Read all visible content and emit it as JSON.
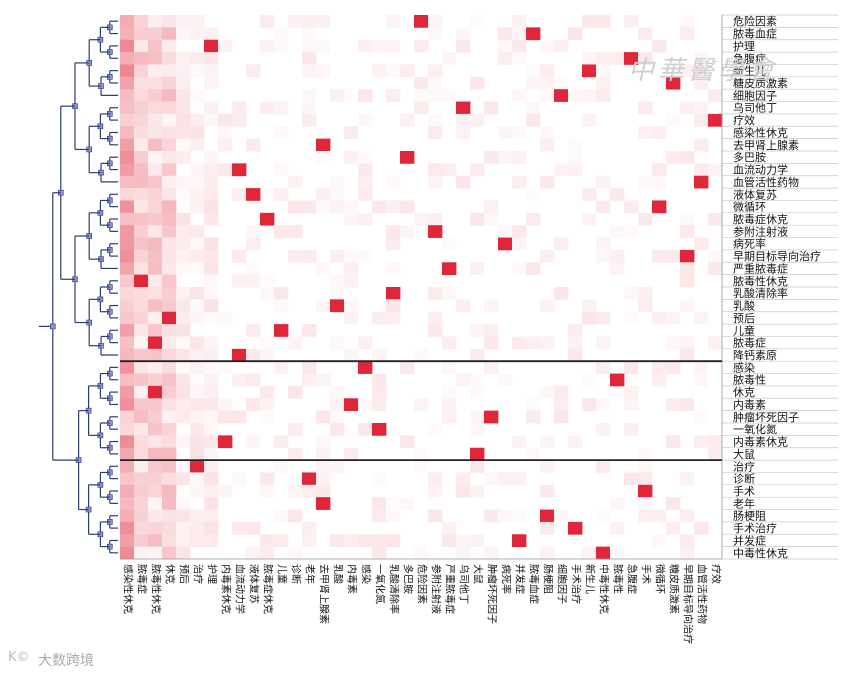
{
  "chart_data": {
    "type": "heatmap",
    "title": "",
    "rows": [
      "危险因素",
      "脓毒血症",
      "护理",
      "急腹症",
      "新生儿",
      "糖皮质激素",
      "细胞因子",
      "乌司他丁",
      "疗效",
      "感染性休克",
      "去甲肾上腺素",
      "多巴胺",
      "血流动力学",
      "血管活性药物",
      "液体复苏",
      "微循环",
      "脓毒症休克",
      "参附注射液",
      "病死率",
      "早期目标导向治疗",
      "严重脓毒症",
      "脓毒性休克",
      "乳酸清除率",
      "乳酸",
      "预后",
      "儿童",
      "脓毒症",
      "降钙素原",
      "感染",
      "脓毒性",
      "休克",
      "内毒素",
      "肿瘤坏死因子",
      "一氧化氮",
      "内毒素休克",
      "大鼠",
      "治疗",
      "诊断",
      "手术",
      "老年",
      "肠梗阻",
      "手术治疗",
      "并发症",
      "中毒性休克"
    ],
    "columns": [
      "感染性休克",
      "脓毒症",
      "脓毒性休克",
      "休克",
      "预后",
      "治疗",
      "护理",
      "内毒素休克",
      "血流动力学",
      "液体复苏",
      "脓毒症休克",
      "儿童",
      "诊断",
      "老年",
      "去甲肾上腺素",
      "乳酸",
      "内毒素",
      "感染",
      "一氧化氮",
      "乳酸清除率",
      "多巴胺",
      "危险因素",
      "参附注射液",
      "严重脓毒症",
      "乌司他丁",
      "大鼠",
      "肿瘤坏死因子",
      "病死率",
      "并发症",
      "脓毒血症",
      "肠梗阻",
      "细胞因子",
      "手术治疗",
      "新生儿",
      "中毒性休克",
      "脓毒性",
      "急腹症",
      "手术",
      "微循环",
      "糖皮质激素",
      "早期目标导向治疗",
      "血管活性药物",
      "疗效"
    ],
    "clusters": [
      28,
      8,
      8
    ],
    "hot_cells": [
      [
        0,
        21
      ],
      [
        1,
        29
      ],
      [
        2,
        6
      ],
      [
        3,
        36
      ],
      [
        4,
        33
      ],
      [
        5,
        39
      ],
      [
        6,
        31
      ],
      [
        7,
        24
      ],
      [
        8,
        42
      ],
      [
        10,
        14
      ],
      [
        11,
        20
      ],
      [
        12,
        8
      ],
      [
        13,
        41
      ],
      [
        14,
        9
      ],
      [
        15,
        38
      ],
      [
        16,
        10
      ],
      [
        17,
        22
      ],
      [
        18,
        27
      ],
      [
        19,
        40
      ],
      [
        20,
        23
      ],
      [
        21,
        1
      ],
      [
        22,
        19
      ],
      [
        23,
        15
      ],
      [
        24,
        3
      ],
      [
        25,
        11
      ],
      [
        26,
        2
      ],
      [
        27,
        8
      ],
      [
        28,
        17
      ],
      [
        29,
        35
      ],
      [
        30,
        2
      ],
      [
        31,
        16
      ],
      [
        32,
        26
      ],
      [
        33,
        18
      ],
      [
        34,
        7
      ],
      [
        35,
        25
      ],
      [
        36,
        5
      ],
      [
        37,
        13
      ],
      [
        38,
        37
      ],
      [
        39,
        14
      ],
      [
        40,
        30
      ],
      [
        41,
        32
      ],
      [
        42,
        28
      ],
      [
        43,
        34
      ]
    ],
    "heat_scale": {
      "min_color": "#ffffff",
      "max_color": "#e0273a"
    },
    "grid": true,
    "legend": "none"
  },
  "watermarks": {
    "bottom_left": "大数跨境",
    "bottom_left_logo": "K©",
    "top_right": "中華醫學會"
  }
}
